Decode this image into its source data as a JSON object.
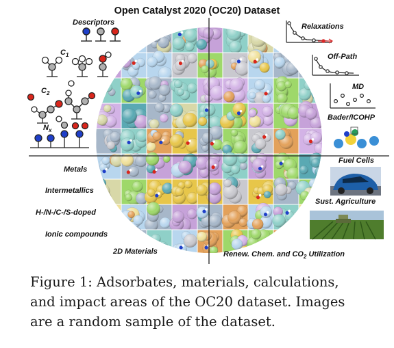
{
  "figure": {
    "title": "Open Catalyst 2020 (OC20) Dataset",
    "left_labels": {
      "descriptors": "Descriptors",
      "c1": "C",
      "c1_sub": "1",
      "c2": "C",
      "c2_sub": "2",
      "nx": "N",
      "nx_sub": "x"
    },
    "materials": [
      "Metals",
      "Intermetallics",
      "H-/N-/C-/S-doped",
      "Ionic compounds",
      "2D Materials"
    ],
    "calculations": [
      "Relaxations",
      "Off-Path",
      "MD",
      "Bader/ICOHP"
    ],
    "impact": {
      "fuel_cells": "Fuel Cells",
      "agriculture": "Sust. Agriculture",
      "renew_prefix": "Renew. Chem. and CO",
      "renew_sub": "2",
      "renew_suffix": " Utilization"
    }
  },
  "caption": {
    "lines": [
      "Figure 1:  Adsorbates, materials, calculations,",
      "and impact areas of the OC20 dataset. Images",
      "are a random sample of the dataset."
    ]
  },
  "colors": {
    "adsorbate_red": "#d9261c",
    "adsorbate_blue": "#1f3fc9",
    "adsorbate_gray": "#b0b0b0",
    "relax_arrow": "#d92b2b"
  }
}
